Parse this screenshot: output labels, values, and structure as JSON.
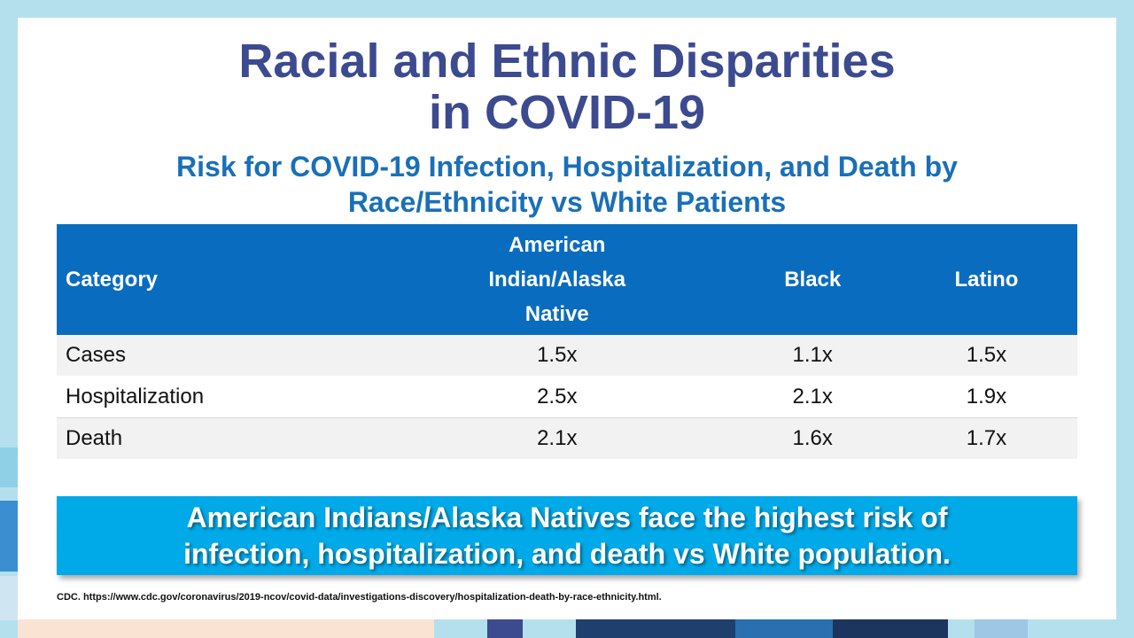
{
  "title_line1": "Racial and Ethnic Disparities",
  "title_line2": "in COVID-19",
  "subtitle_line1": "Risk for COVID-19 Infection, Hospitalization, and Death by",
  "subtitle_line2": "Race/Ethnicity vs White Patients",
  "table": {
    "headers": [
      "Category",
      "American Indian/Alaska Native",
      "Black",
      "Latino"
    ],
    "header_col1_lines": [
      "American",
      "Indian/Alaska",
      "Native"
    ],
    "rows": [
      {
        "category": "Cases",
        "aian": "1.5x",
        "black": "1.1x",
        "latino": "1.5x"
      },
      {
        "category": "Hospitalization",
        "aian": "2.5x",
        "black": "2.1x",
        "latino": "1.9x"
      },
      {
        "category": "Death",
        "aian": "2.1x",
        "black": "1.6x",
        "latino": "1.7x"
      }
    ]
  },
  "callout_line1": "American Indians/Alaska Natives face the highest risk of",
  "callout_line2": "infection, hospitalization, and death vs White population.",
  "source": "CDC. https://www.cdc.gov/coronavirus/2019-ncov/covid-data/investigations-discovery/hospitalization-death-by-race-ethnicity.html.",
  "colors": {
    "background": "#b4e0ee",
    "title": "#3c4a8f",
    "subtitle": "#1a6fb8",
    "table_header": "#0a6cbf",
    "callout": "#00a9e8"
  }
}
